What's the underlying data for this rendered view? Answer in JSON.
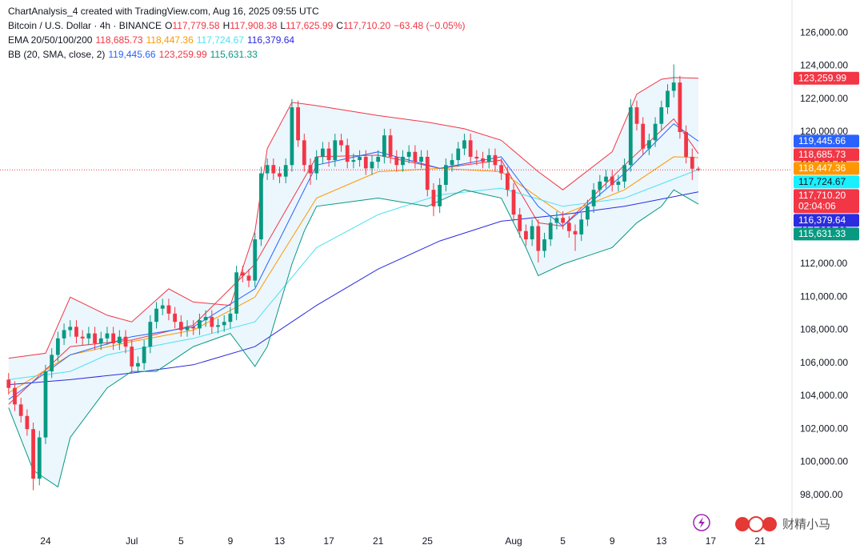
{
  "chart_data": {
    "type": "candlestick",
    "attribution": "ChartAnalysis_4 created with TradingView.com, Aug 16, 2025 09:55 UTC",
    "title": "Bitcoin / U.S. Dollar · 4h · BINANCE",
    "ohlc_header": [
      {
        "key": "O",
        "value": "117,779.58"
      },
      {
        "key": "H",
        "value": "117,908.38"
      },
      {
        "key": "L",
        "value": "117,625.99"
      },
      {
        "key": "C",
        "value": "117,710.20"
      }
    ],
    "change": "−63.48 (−0.05%)",
    "up_color": "#089981",
    "down_color": "#f23645",
    "xlim": [
      -0.7,
      63.6
    ],
    "xticks": [
      {
        "value": 3,
        "label": "24"
      },
      {
        "value": 10,
        "label": "Jul"
      },
      {
        "value": 14,
        "label": "5"
      },
      {
        "value": 18,
        "label": "9"
      },
      {
        "value": 22,
        "label": "13"
      },
      {
        "value": 26,
        "label": "17"
      },
      {
        "value": 30,
        "label": "21"
      },
      {
        "value": 34,
        "label": "25"
      },
      {
        "value": 41,
        "label": "Aug"
      },
      {
        "value": 45,
        "label": "5"
      },
      {
        "value": 49,
        "label": "9"
      },
      {
        "value": 53,
        "label": "13"
      },
      {
        "value": 57,
        "label": "17"
      },
      {
        "value": 61,
        "label": "21"
      }
    ],
    "ylim": [
      96000,
      128000
    ],
    "yticks": [
      {
        "value": 98000,
        "label": "98,000.00"
      },
      {
        "value": 100000,
        "label": "100,000.00"
      },
      {
        "value": 102000,
        "label": "102,000.00"
      },
      {
        "value": 104000,
        "label": "104,000.00"
      },
      {
        "value": 106000,
        "label": "106,000.00"
      },
      {
        "value": 108000,
        "label": "108,000.00"
      },
      {
        "value": 110000,
        "label": "110,000.00"
      },
      {
        "value": 112000,
        "label": "112,000.00"
      },
      {
        "value": 114000,
        "label": "114,000.00"
      },
      {
        "value": 116000,
        "label": "116,000.00"
      },
      {
        "value": 118000,
        "label": "118,000.00"
      },
      {
        "value": 120000,
        "label": "120,000.00"
      },
      {
        "value": 122000,
        "label": "122,000.00"
      },
      {
        "value": 124000,
        "label": "124,000.00"
      },
      {
        "value": 126000,
        "label": "126,000.00"
      }
    ],
    "grid": false,
    "candles": {
      "x": [
        0,
        0.5,
        1,
        1.5,
        2,
        2.5,
        3,
        3.5,
        4,
        4.5,
        5,
        5.5,
        6,
        6.5,
        7,
        7.5,
        8,
        8.5,
        9,
        9.5,
        10,
        10.5,
        11,
        11.5,
        12,
        12.5,
        13,
        13.5,
        14,
        14.5,
        15,
        15.5,
        16,
        16.5,
        17,
        17.5,
        18,
        18.5,
        19,
        19.5,
        20,
        20.5,
        21,
        21.5,
        22,
        22.5,
        23,
        23.5,
        24,
        24.5,
        25,
        25.5,
        26,
        26.5,
        27,
        27.5,
        28,
        28.5,
        29,
        29.5,
        30,
        30.5,
        31,
        31.5,
        32,
        32.5,
        33,
        33.5,
        34,
        34.5,
        35,
        35.5,
        36,
        36.5,
        37,
        37.5,
        38,
        38.5,
        39,
        39.5,
        40,
        40.5,
        41,
        41.5,
        42,
        42.5,
        43,
        43.5,
        44,
        44.5,
        45,
        45.5,
        46,
        46.5,
        47,
        47.5,
        48,
        48.5,
        49,
        49.5,
        50,
        50.5,
        51,
        51.5,
        52,
        52.5,
        53,
        53.5,
        54,
        54.5,
        55,
        55.5,
        56
      ],
      "open": [
        105000,
        104500,
        103500,
        102800,
        102000,
        99000,
        101500,
        105500,
        106500,
        107500,
        108000,
        108200,
        107600,
        107500,
        107800,
        107200,
        107500,
        107800,
        107200,
        107600,
        107000,
        105800,
        106000,
        107000,
        108500,
        109300,
        109500,
        109000,
        108500,
        108000,
        108200,
        108100,
        108600,
        108800,
        108200,
        108300,
        108500,
        109000,
        111500,
        111300,
        111000,
        113500,
        117500,
        118000,
        117500,
        117300,
        118000,
        121500,
        119500,
        118000,
        117500,
        118500,
        119000,
        118300,
        119500,
        119200,
        118200,
        118300,
        118500,
        117800,
        118200,
        118500,
        119800,
        118500,
        118000,
        118500,
        118800,
        118200,
        118500,
        116500,
        115500,
        116800,
        118000,
        118300,
        119000,
        119500,
        118500,
        118400,
        118200,
        118600,
        118000,
        117500,
        116500,
        115000,
        114000,
        113500,
        114300,
        112800,
        113500,
        114500,
        114800,
        114500,
        114000,
        113800,
        114700,
        115500,
        116500,
        117000,
        117300,
        116800,
        117000,
        118000,
        121500,
        120500,
        119000,
        119500,
        120500,
        121500,
        122500,
        123000,
        120000,
        118500,
        117779.58
      ],
      "high": [
        105400,
        104900,
        103900,
        103200,
        102400,
        101900,
        105900,
        106900,
        107900,
        108400,
        108600,
        108600,
        108000,
        108200,
        108200,
        107900,
        108200,
        108200,
        108000,
        108000,
        107400,
        106400,
        107400,
        108900,
        109700,
        109900,
        109900,
        109400,
        108900,
        108600,
        108600,
        109000,
        109200,
        109200,
        108700,
        108900,
        109400,
        111900,
        111900,
        111700,
        113900,
        117900,
        118400,
        118400,
        117900,
        118400,
        122000,
        121900,
        119900,
        118400,
        118900,
        119400,
        119400,
        119900,
        119900,
        119600,
        118700,
        118900,
        118900,
        118600,
        118900,
        120200,
        120200,
        118900,
        118900,
        119200,
        119200,
        118900,
        118900,
        116900,
        117200,
        118400,
        118700,
        119400,
        119900,
        119900,
        118900,
        118800,
        119000,
        119000,
        118400,
        117900,
        116900,
        115400,
        114400,
        114700,
        114700,
        113900,
        114900,
        115200,
        115200,
        114900,
        114400,
        115100,
        115900,
        116900,
        117400,
        117700,
        117700,
        117400,
        118400,
        122000,
        121900,
        120900,
        119900,
        120900,
        121900,
        122900,
        124100,
        123400,
        120400,
        119000,
        117908.38
      ],
      "low": [
        104100,
        103100,
        102400,
        101600,
        98300,
        98600,
        101100,
        105100,
        106100,
        107100,
        107600,
        107200,
        107100,
        107100,
        106800,
        106800,
        107100,
        106800,
        106800,
        106600,
        105400,
        105400,
        105600,
        106600,
        108100,
        108900,
        108600,
        108100,
        107600,
        107600,
        107700,
        107700,
        108200,
        107800,
        107800,
        107900,
        108100,
        108600,
        110900,
        110600,
        110600,
        113100,
        117100,
        117100,
        116900,
        116900,
        117600,
        119100,
        117600,
        116800,
        117100,
        118100,
        117900,
        117900,
        118800,
        117800,
        117800,
        117900,
        117400,
        117400,
        117800,
        118100,
        118100,
        117600,
        117600,
        118100,
        117800,
        117800,
        116100,
        114900,
        115100,
        116400,
        117600,
        117900,
        118600,
        118100,
        118000,
        117800,
        117800,
        117600,
        117100,
        116100,
        114600,
        113600,
        113100,
        113100,
        112100,
        112400,
        113100,
        114100,
        114100,
        113600,
        112800,
        113400,
        114300,
        115100,
        116100,
        116600,
        116400,
        116400,
        116600,
        117600,
        120100,
        118600,
        118600,
        119100,
        120100,
        121100,
        122100,
        119600,
        118100,
        117100,
        117625.99
      ],
      "close": [
        104500,
        103500,
        102800,
        102000,
        99000,
        101500,
        105500,
        106500,
        107500,
        108000,
        108200,
        107600,
        107500,
        107800,
        107200,
        107500,
        107800,
        107200,
        107600,
        107000,
        105800,
        106000,
        107000,
        108500,
        109300,
        109500,
        109000,
        108500,
        108000,
        108200,
        108100,
        108600,
        108800,
        108200,
        108300,
        108500,
        109000,
        111500,
        111300,
        111000,
        113500,
        117500,
        118000,
        117500,
        117300,
        118000,
        121500,
        119500,
        118000,
        117500,
        118500,
        119000,
        118300,
        119500,
        119200,
        118200,
        118300,
        118500,
        117800,
        118200,
        118500,
        119800,
        118500,
        118000,
        118500,
        118800,
        118200,
        118500,
        116500,
        115500,
        116800,
        118000,
        118300,
        119000,
        119500,
        118500,
        118400,
        118200,
        118600,
        118000,
        117500,
        116500,
        115000,
        114000,
        113500,
        114300,
        112800,
        113500,
        114500,
        114800,
        114500,
        114000,
        113800,
        114700,
        115500,
        116500,
        117000,
        117300,
        116800,
        117000,
        118000,
        121500,
        120500,
        119000,
        119500,
        120500,
        121500,
        122500,
        123000,
        120000,
        118500,
        117779.58,
        117710.2
      ],
      "last_label": "117,710.20",
      "countdown": "02:04:06"
    },
    "indicators": [
      {
        "label": "EMA 20/50/100/200",
        "lines": [
          {
            "color": "#f23645",
            "x": [
              0,
              5,
              10,
              15,
              20,
              25,
              30,
              35,
              40,
              43,
              45,
              50,
              54,
              56
            ],
            "values": [
              103500,
              107000,
              107400,
              108300,
              112000,
              118500,
              118600,
              117800,
              118300,
              114500,
              114300,
              118000,
              120800,
              118685.73
            ],
            "last_label": "118,685.73"
          },
          {
            "color": "#ff9800",
            "x": [
              0,
              5,
              10,
              15,
              20,
              25,
              30,
              35,
              40,
              45,
              50,
              54,
              56
            ],
            "values": [
              104200,
              106500,
              107300,
              108000,
              110000,
              116000,
              117600,
              117800,
              117600,
              115000,
              116500,
              118500,
              118447.36
            ],
            "last_label": "118,447.36"
          },
          {
            "color": "#4de1f0",
            "x": [
              0,
              5,
              8,
              15,
              20,
              25,
              30,
              35,
              40,
              45,
              50,
              56
            ],
            "values": [
              105000,
              105500,
              106500,
              107500,
              108500,
              113000,
              115000,
              116200,
              116600,
              115500,
              116000,
              117724.67
            ],
            "last_label": "117,724.67"
          },
          {
            "color": "#2b2be0",
            "x": [
              0,
              5,
              10,
              15,
              20,
              25,
              30,
              35,
              40,
              45,
              50,
              56
            ],
            "values": [
              104700,
              105000,
              105400,
              105900,
              107000,
              109500,
              111700,
              113400,
              114600,
              115000,
              115500,
              116379.64
            ],
            "last_label": "116,379.64"
          }
        ]
      },
      {
        "label": "BB (20, SMA, close, 2)",
        "fill": "#e9f4fd",
        "lines": [
          {
            "color": "#2962ff",
            "x": [
              0,
              5,
              10,
              15,
              20,
              25,
              30,
              35,
              40,
              43,
              45,
              50,
              54,
              56
            ],
            "values": [
              103800,
              106500,
              107600,
              108200,
              110500,
              118000,
              118800,
              117800,
              118500,
              115500,
              114300,
              117500,
              120500,
              119445.66
            ],
            "last_label": "119,445.66"
          },
          {
            "color": "#f23645",
            "x": [
              0,
              3,
              5,
              8,
              10,
              13,
              15,
              18,
              20,
              21,
              23,
              25,
              30,
              34,
              37,
              40,
              43,
              45,
              49,
              51,
              53,
              54,
              56
            ],
            "values": [
              106300,
              106600,
              110000,
              108900,
              108500,
              110500,
              109700,
              109500,
              114000,
              119000,
              121800,
              121600,
              121000,
              120600,
              120200,
              119500,
              117600,
              116500,
              118800,
              122300,
              123200,
              123300,
              123259.99
            ],
            "last_label": "123,259.99"
          },
          {
            "color": "#089981",
            "x": [
              0,
              2,
              4,
              5,
              8,
              10,
              12,
              15,
              18,
              20,
              21,
              23,
              24,
              25,
              30,
              34,
              37,
              40,
              42,
              43,
              45,
              47,
              49,
              51,
              53,
              54,
              56
            ],
            "values": [
              103300,
              99500,
              98500,
              101500,
              104500,
              105500,
              105500,
              107000,
              107800,
              105800,
              107000,
              112000,
              114000,
              115500,
              116000,
              115500,
              116500,
              116000,
              113000,
              111300,
              112000,
              112500,
              113000,
              114500,
              115500,
              116500,
              115631.33
            ],
            "last_label": "115,631.33"
          }
        ]
      }
    ],
    "watermark": "财精小马"
  }
}
